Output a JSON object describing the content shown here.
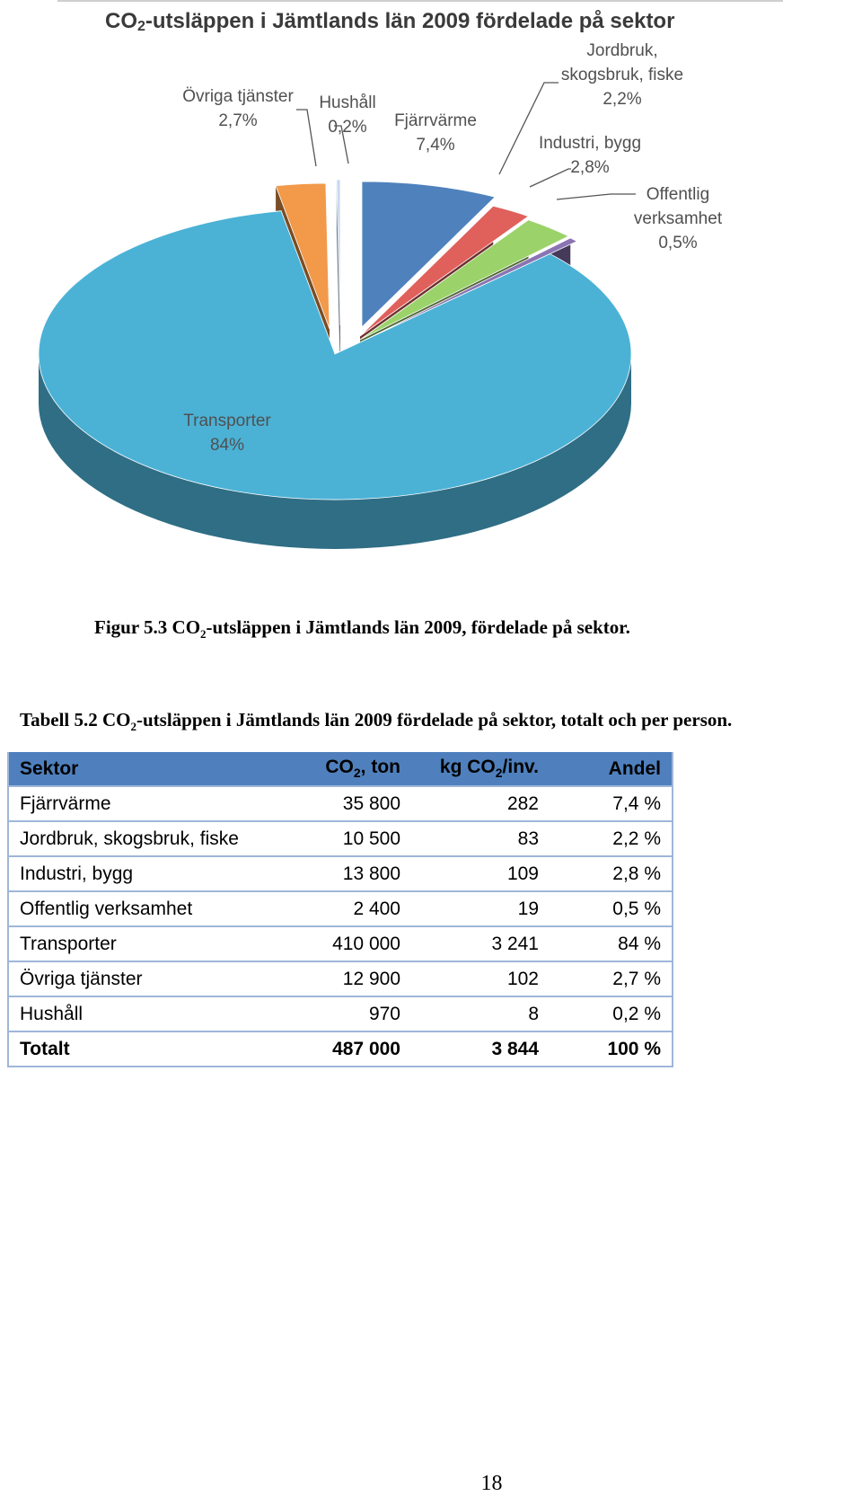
{
  "figure": {
    "chart_data": {
      "type": "pie",
      "title_prefix": "CO",
      "title_sub": "2",
      "title_suffix": "-utsläppen i Jämtlands län 2009 fördelade på sektor",
      "slices": [
        {
          "label_lines": [
            "Fjärrvärme",
            "7,4%"
          ],
          "value": 7.4,
          "color": "#4f81bd"
        },
        {
          "label_lines": [
            "Jordbruk,",
            "skogsbruk, fiske",
            "2,2%"
          ],
          "value": 2.2,
          "color": "#e0605c"
        },
        {
          "label_lines": [
            "Industri, bygg",
            "2,8%"
          ],
          "value": 2.8,
          "color": "#9bd26a"
        },
        {
          "label_lines": [
            "Offentlig",
            "verksamhet",
            "0,5%"
          ],
          "value": 0.5,
          "color": "#8a74b3"
        },
        {
          "label_lines": [
            "Transporter",
            "84%"
          ],
          "value": 84,
          "color": "#4bb2d6"
        },
        {
          "label_lines": [
            "Övriga tjänster",
            "2,7%"
          ],
          "value": 2.7,
          "color": "#f2994a"
        },
        {
          "label_lines": [
            "Hushåll",
            "0,2%"
          ],
          "value": 0.2,
          "color": "#c6d9f1"
        }
      ]
    },
    "caption_prefix": "Figur 5.3 CO",
    "caption_sub": "2",
    "caption_suffix": "-utsläppen i Jämtlands län 2009, fördelade på sektor."
  },
  "table": {
    "caption_prefix": "Tabell 5.2 CO",
    "caption_sub": "2",
    "caption_suffix": "-utsläppen i Jämtlands län 2009 fördelade på sektor, totalt och per person.",
    "headers": {
      "sector": "Sektor",
      "co2_prefix": "CO",
      "co2_sub": "2",
      "co2_suffix": ", ton",
      "kg_prefix": "kg CO",
      "kg_sub": "2",
      "kg_suffix": "/inv.",
      "share": "Andel"
    },
    "rows": [
      {
        "sector": "Fjärrvärme",
        "co2_ton": "35 800",
        "kg_per_inv": "282",
        "share": "7,4 %"
      },
      {
        "sector": "Jordbruk, skogsbruk, fiske",
        "co2_ton": "10 500",
        "kg_per_inv": "83",
        "share": "2,2 %"
      },
      {
        "sector": "Industri, bygg",
        "co2_ton": "13 800",
        "kg_per_inv": "109",
        "share": "2,8 %"
      },
      {
        "sector": "Offentlig verksamhet",
        "co2_ton": "2 400",
        "kg_per_inv": "19",
        "share": "0,5 %"
      },
      {
        "sector": "Transporter",
        "co2_ton": "410 000",
        "kg_per_inv": "3 241",
        "share": "84 %"
      },
      {
        "sector": "Övriga tjänster",
        "co2_ton": "12 900",
        "kg_per_inv": "102",
        "share": "2,7 %"
      },
      {
        "sector": "Hushåll",
        "co2_ton": "970",
        "kg_per_inv": "8",
        "share": "0,2 %"
      }
    ],
    "total": {
      "sector": "Totalt",
      "co2_ton": "487 000",
      "kg_per_inv": "3 844",
      "share": "100 %"
    }
  },
  "page_number": "18"
}
